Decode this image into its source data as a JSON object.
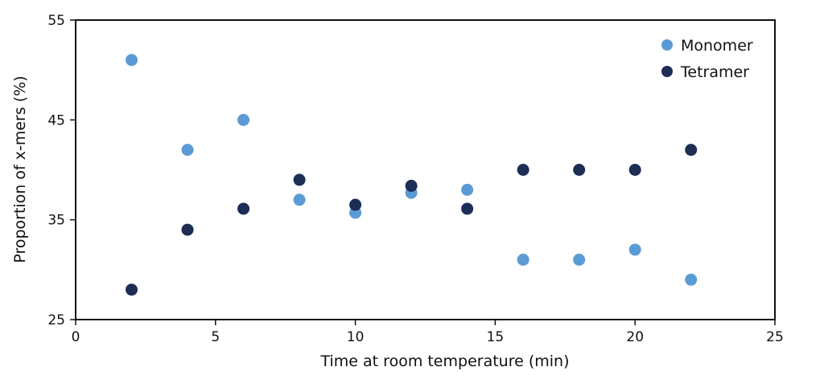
{
  "chart_data": {
    "type": "scatter",
    "title": "",
    "xlabel": "Time at room temperature (min)",
    "ylabel": "Proportion of x-mers (%)",
    "xlim": [
      0,
      25
    ],
    "ylim": [
      25,
      55
    ],
    "xticks": [
      0,
      5,
      10,
      15,
      20,
      25
    ],
    "yticks": [
      25,
      35,
      45,
      55
    ],
    "grid": false,
    "legend_position": "top-right",
    "series": [
      {
        "name": "Monomer",
        "color": "#5b9bd5",
        "x": [
          2,
          4,
          6,
          8,
          10,
          12,
          14,
          16,
          18,
          20,
          22
        ],
        "y": [
          51,
          42,
          45,
          37,
          35.7,
          37.7,
          38,
          31,
          31,
          32,
          29
        ]
      },
      {
        "name": "Tetramer",
        "color": "#1c2e54",
        "x": [
          2,
          4,
          6,
          8,
          10,
          12,
          14,
          16,
          18,
          20,
          22
        ],
        "y": [
          28,
          34,
          36.1,
          39,
          36.5,
          38.4,
          36.1,
          40,
          40,
          40,
          42
        ]
      }
    ]
  }
}
